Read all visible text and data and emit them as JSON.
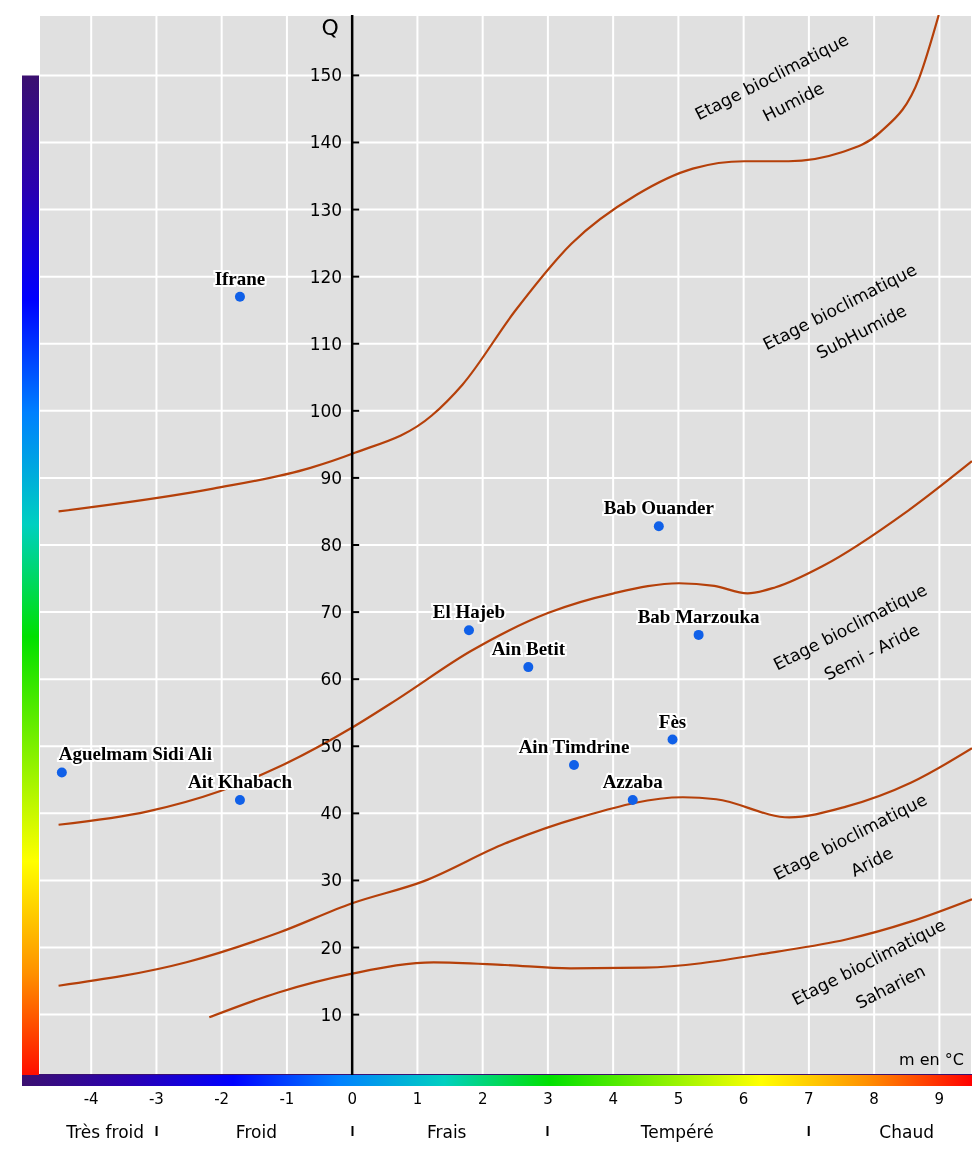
{
  "chart_data": {
    "type": "scatter",
    "xlabel": "m en °C",
    "ylabel": "Q",
    "xlim": [
      -4.8,
      9.5
    ],
    "xticks": [
      -4,
      -3,
      -2,
      -1,
      0,
      1,
      2,
      3,
      4,
      5,
      6,
      7,
      8,
      9
    ],
    "ylim": [
      1,
      159
    ],
    "yticks": [
      10,
      20,
      30,
      40,
      50,
      60,
      70,
      80,
      90,
      100,
      110,
      120,
      130,
      140,
      150
    ],
    "grid": true,
    "marker": "circle",
    "series": [
      {
        "type": "scatter",
        "color": "#1060e8",
        "x": [
          -1.72,
          4.7,
          1.79,
          2.7,
          5.31,
          4.91,
          3.4,
          4.3,
          -4.45,
          -1.72
        ],
        "values": [
          117,
          82.8,
          67.3,
          61.8,
          66.6,
          51,
          47.2,
          42,
          46.1,
          42
        ]
      },
      {
        "type": "line",
        "marker": "none",
        "color": "#b5400a",
        "x": [
          -4.5,
          -2.13,
          -0.64,
          0,
          1.22,
          1.69,
          2.49,
          3.36,
          4.36,
          5.22,
          6.01,
          6.69,
          7.49,
          8.09,
          8.69,
          8.99
        ],
        "values": [
          85,
          88.4,
          91.5,
          93.6,
          99.3,
          103.9,
          114.8,
          124.9,
          132.2,
          136.1,
          137.2,
          137.2,
          138.5,
          141.5,
          149.6,
          159
        ]
      },
      {
        "type": "line",
        "marker": "none",
        "color": "#b5400a",
        "x": [
          -4.5,
          -3.13,
          -2.03,
          -1.13,
          0,
          0.69,
          1.82,
          3.01,
          4.01,
          5.01,
          5.55,
          6.06,
          6.49,
          7.22,
          8.49,
          9.5
        ],
        "values": [
          38.3,
          40.3,
          43.3,
          46.9,
          52.8,
          57,
          64.2,
          69.9,
          72.8,
          74.3,
          73.9,
          72.8,
          73.7,
          76.9,
          84.9,
          92.5
        ]
      },
      {
        "type": "line",
        "marker": "none",
        "color": "#b5400a",
        "x": [
          -4.5,
          -2.54,
          -1.13,
          0,
          1.1,
          2.34,
          3.49,
          5.07,
          5.58,
          6.7,
          7.57,
          8.57,
          9.5
        ],
        "values": [
          14.3,
          17.8,
          22.2,
          26.6,
          29.9,
          35.5,
          39.4,
          42.4,
          42.1,
          39.4,
          41,
          44.6,
          49.7
        ]
      },
      {
        "type": "line",
        "marker": "none",
        "color": "#b5400a",
        "x": [
          -2.19,
          -1.13,
          0,
          1.25,
          2.34,
          3.34,
          4.48,
          6.52,
          7.57,
          8.57,
          9.5
        ],
        "values": [
          9.6,
          13.3,
          16.1,
          17.8,
          17.4,
          16.9,
          17,
          19.4,
          21.2,
          23.9,
          27.2
        ]
      }
    ],
    "annotations": [
      {
        "text": "Ifrane",
        "x": -1.72,
        "y": 117
      },
      {
        "text": "Bab Ouander",
        "x": 4.7,
        "y": 82.8
      },
      {
        "text": "El Hajeb",
        "x": 1.79,
        "y": 67.3
      },
      {
        "text": "Ain Betit",
        "x": 2.7,
        "y": 61.8
      },
      {
        "text": "Bab Marzouka",
        "x": 5.31,
        "y": 66.6
      },
      {
        "text": "Fès",
        "x": 4.91,
        "y": 51
      },
      {
        "text": "Ain Timdrine",
        "x": 3.4,
        "y": 47.2
      },
      {
        "text": "Azzaba",
        "x": 4.3,
        "y": 42
      },
      {
        "text": "Aguelmam Sidi Ali",
        "x": -4.45,
        "y": 46.1
      },
      {
        "text": "Ait Khabach",
        "x": -1.72,
        "y": 42
      },
      "Etage bioclimatique\nHumide",
      "Etage bioclimatique\nSubHumide",
      "Etage bioclimatique\nSemi - Aride",
      "Etage bioclimatique\nAride",
      "Etage bioclimatique\nSaharien",
      "Très froid",
      "Froid",
      "Frais",
      "Tempéré",
      "Chaud"
    ]
  }
}
